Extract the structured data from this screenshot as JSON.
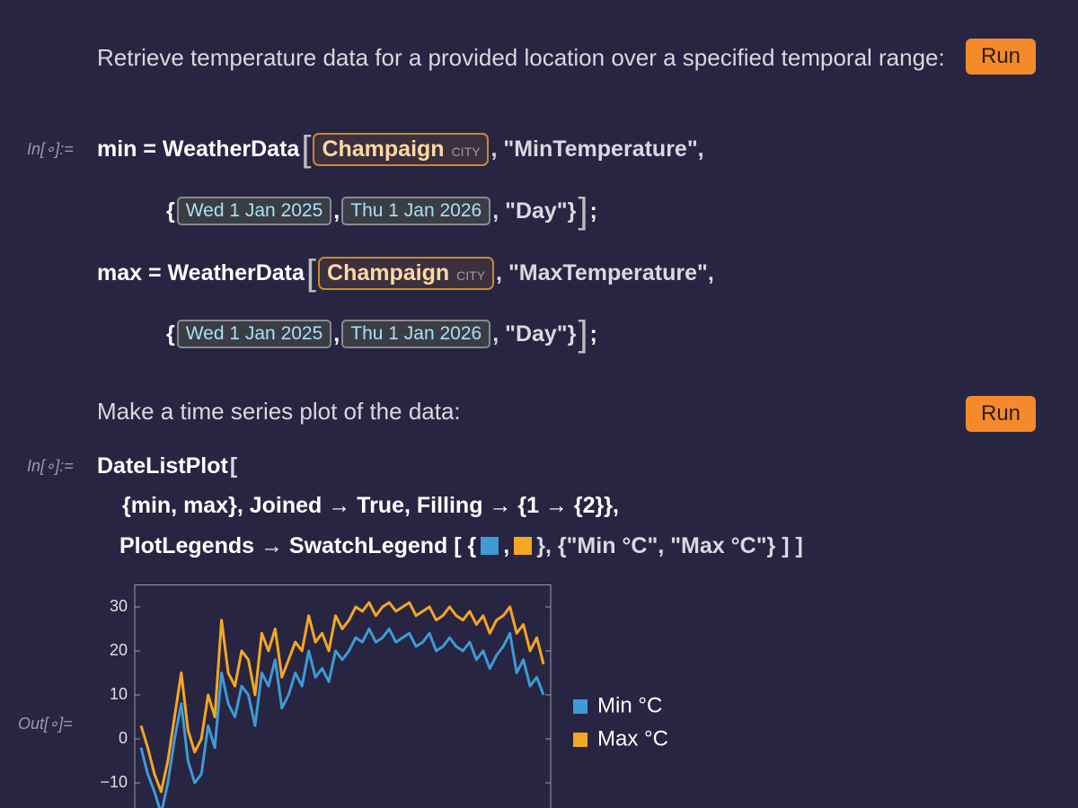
{
  "text_cells": [
    "Retrieve temperature data for a provided location over a specified temporal range:",
    "Make a time series plot of the data:"
  ],
  "run_buttons": [
    "Run",
    "Run"
  ],
  "input_labels": [
    "In[∘]:=",
    "In[∘]:="
  ],
  "output_label": "Out[∘]=",
  "weather_code": {
    "lines": [
      [
        "min = WeatherData",
        "[",
        "Champaign",
        "CITY",
        ", \"MinTemperature\","
      ],
      [
        "{",
        "Wed 1 Jan 2025",
        ",",
        "Thu 1 Jan 2026",
        ", \"Day\"}",
        "]",
        ";"
      ],
      [
        "max = WeatherData",
        "[",
        "Champaign",
        "CITY",
        ", \"MaxTemperature\","
      ],
      [
        "{",
        "Wed 1 Jan 2025",
        ",",
        "Thu 1 Jan 2026",
        ", \"Day\"}",
        "]",
        ";"
      ]
    ]
  },
  "plot_code": {
    "lines": [
      [
        "DateListPlot",
        "["
      ],
      [
        "{min, max}, Joined → True, Filling → {1 → {2}},"
      ],
      [
        "PlotLegends → SwatchLegend [ {",
        ",",
        "}, {\"Min °C\", \"Max °C\"} ] ]"
      ]
    ]
  },
  "chart_data": {
    "type": "line",
    "ylim": [
      -20,
      35
    ],
    "yticks": [
      {
        "value": -10,
        "label": "−10"
      },
      0,
      10,
      20,
      30
    ],
    "series": [
      {
        "name": "Min °C",
        "color": "#3d9bd6",
        "values": [
          -2,
          -8,
          -12,
          -17,
          -10,
          0,
          8,
          -5,
          -10,
          -8,
          3,
          -2,
          15,
          8,
          5,
          12,
          10,
          3,
          15,
          12,
          18,
          7,
          10,
          15,
          12,
          20,
          14,
          16,
          13,
          20,
          18,
          20,
          23,
          22,
          25,
          22,
          23,
          25,
          22,
          23,
          24,
          21,
          22,
          24,
          20,
          21,
          23,
          21,
          20,
          22,
          18,
          20,
          16,
          19,
          21,
          24,
          15,
          18,
          12,
          14,
          10
        ]
      },
      {
        "name": "Max °C",
        "color": "#f5a623",
        "values": [
          3,
          -2,
          -8,
          -12,
          -5,
          5,
          15,
          2,
          -3,
          0,
          10,
          5,
          27,
          15,
          12,
          20,
          18,
          10,
          24,
          20,
          25,
          14,
          18,
          22,
          20,
          28,
          22,
          24,
          20,
          28,
          25,
          27,
          30,
          29,
          31,
          28,
          30,
          31,
          29,
          30,
          31,
          28,
          29,
          30,
          27,
          28,
          30,
          28,
          27,
          29,
          26,
          28,
          24,
          27,
          28,
          30,
          24,
          26,
          20,
          23,
          17
        ]
      }
    ]
  }
}
